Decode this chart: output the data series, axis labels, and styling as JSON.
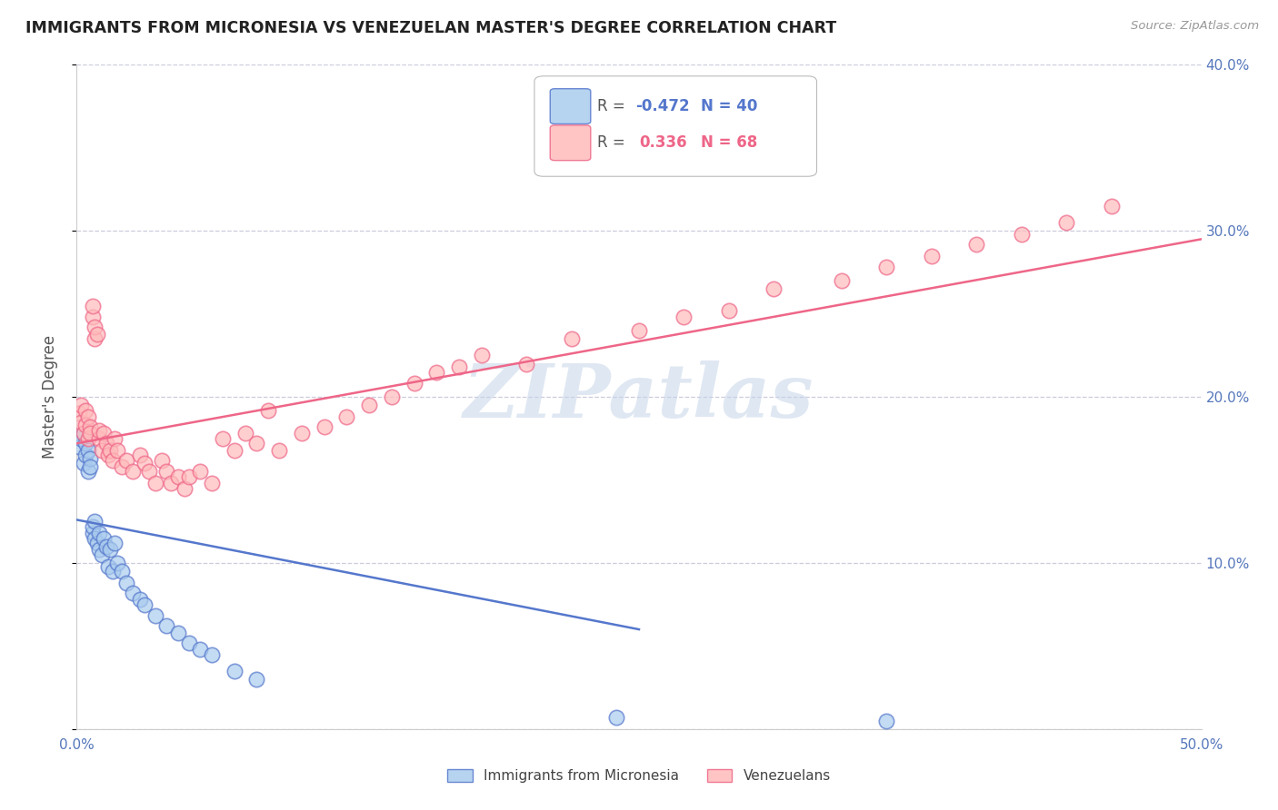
{
  "title": "IMMIGRANTS FROM MICRONESIA VS VENEZUELAN MASTER'S DEGREE CORRELATION CHART",
  "source": "Source: ZipAtlas.com",
  "ylabel": "Master's Degree",
  "xlim": [
    0.0,
    0.5
  ],
  "ylim": [
    0.0,
    0.4
  ],
  "x_ticks": [
    0.0,
    0.1,
    0.2,
    0.3,
    0.4,
    0.5
  ],
  "x_tick_labels": [
    "0.0%",
    "",
    "",
    "",
    "",
    "50.0%"
  ],
  "y_ticks": [
    0.0,
    0.1,
    0.2,
    0.3,
    0.4
  ],
  "y_tick_labels_right": [
    "",
    "10.0%",
    "20.0%",
    "30.0%",
    "40.0%"
  ],
  "blue_color": "#88AADD",
  "pink_color": "#FF9999",
  "blue_line_color": "#5577CC",
  "pink_line_color": "#EE6688",
  "blue_fill": "#AACCEE",
  "pink_fill": "#FFBBBB",
  "watermark": "ZIPatlas",
  "watermark_color": "#C5D5E8",
  "legend_r1_label": "R = ",
  "legend_r1_val": "-0.472",
  "legend_n1": "N = 40",
  "legend_r2_label": "R =  ",
  "legend_r2_val": "0.336",
  "legend_n2": "N = 68",
  "background_color": "#FFFFFF",
  "grid_color": "#CCCCDD",
  "blue_x": [
    0.001,
    0.002,
    0.003,
    0.003,
    0.004,
    0.004,
    0.005,
    0.005,
    0.006,
    0.006,
    0.007,
    0.007,
    0.008,
    0.008,
    0.009,
    0.01,
    0.01,
    0.011,
    0.012,
    0.013,
    0.014,
    0.015,
    0.016,
    0.017,
    0.018,
    0.02,
    0.022,
    0.025,
    0.028,
    0.03,
    0.035,
    0.04,
    0.045,
    0.05,
    0.055,
    0.06,
    0.07,
    0.08,
    0.24,
    0.36
  ],
  "blue_y": [
    0.17,
    0.175,
    0.16,
    0.178,
    0.165,
    0.172,
    0.155,
    0.168,
    0.163,
    0.158,
    0.118,
    0.122,
    0.115,
    0.125,
    0.112,
    0.108,
    0.118,
    0.105,
    0.115,
    0.11,
    0.098,
    0.108,
    0.095,
    0.112,
    0.1,
    0.095,
    0.088,
    0.082,
    0.078,
    0.075,
    0.068,
    0.062,
    0.058,
    0.052,
    0.048,
    0.045,
    0.035,
    0.03,
    0.007,
    0.005
  ],
  "pink_x": [
    0.001,
    0.002,
    0.002,
    0.003,
    0.004,
    0.004,
    0.005,
    0.005,
    0.006,
    0.006,
    0.007,
    0.007,
    0.008,
    0.008,
    0.009,
    0.01,
    0.01,
    0.011,
    0.012,
    0.013,
    0.014,
    0.015,
    0.016,
    0.017,
    0.018,
    0.02,
    0.022,
    0.025,
    0.028,
    0.03,
    0.032,
    0.035,
    0.038,
    0.04,
    0.042,
    0.045,
    0.048,
    0.05,
    0.055,
    0.06,
    0.065,
    0.07,
    0.075,
    0.08,
    0.085,
    0.09,
    0.1,
    0.11,
    0.12,
    0.13,
    0.14,
    0.15,
    0.16,
    0.17,
    0.18,
    0.2,
    0.22,
    0.25,
    0.27,
    0.29,
    0.31,
    0.34,
    0.36,
    0.38,
    0.4,
    0.42,
    0.44,
    0.46
  ],
  "pink_y": [
    0.19,
    0.185,
    0.195,
    0.178,
    0.183,
    0.192,
    0.175,
    0.188,
    0.182,
    0.178,
    0.248,
    0.255,
    0.235,
    0.242,
    0.238,
    0.175,
    0.18,
    0.168,
    0.178,
    0.172,
    0.165,
    0.168,
    0.162,
    0.175,
    0.168,
    0.158,
    0.162,
    0.155,
    0.165,
    0.16,
    0.155,
    0.148,
    0.162,
    0.155,
    0.148,
    0.152,
    0.145,
    0.152,
    0.155,
    0.148,
    0.175,
    0.168,
    0.178,
    0.172,
    0.192,
    0.168,
    0.178,
    0.182,
    0.188,
    0.195,
    0.2,
    0.208,
    0.215,
    0.218,
    0.225,
    0.22,
    0.235,
    0.24,
    0.248,
    0.252,
    0.265,
    0.27,
    0.278,
    0.285,
    0.292,
    0.298,
    0.305,
    0.315
  ],
  "blue_line_x0": 0.0,
  "blue_line_x1": 0.25,
  "blue_line_y0": 0.126,
  "blue_line_y1": 0.06,
  "pink_line_x0": 0.0,
  "pink_line_x1": 0.5,
  "pink_line_y0": 0.172,
  "pink_line_y1": 0.295
}
